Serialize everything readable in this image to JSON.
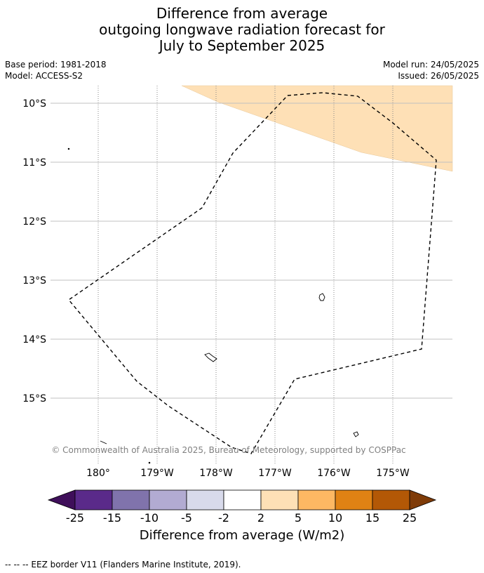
{
  "title": {
    "line1": "Difference from average",
    "line2": "outgoing longwave radiation forecast for",
    "line3": "July to September 2025"
  },
  "meta": {
    "base_period": "Base period: 1981-2018",
    "model": "Model: ACCESS-S2",
    "model_run": "Model run: 24/05/2025",
    "issued": "Issued: 26/05/2025"
  },
  "map": {
    "lat_labels": [
      "10°S",
      "11°S",
      "12°S",
      "13°S",
      "14°S",
      "15°S"
    ],
    "lon_labels": [
      "180°",
      "179°W",
      "178°W",
      "177°W",
      "176°W",
      "175°W"
    ],
    "attribution": "© Commonwealth of Australia 2025, Bureau of Meteorology, supported by COSPPac",
    "anomaly_fill_color": "#fee0b6",
    "eez_border_style": "dashed black"
  },
  "colorbar": {
    "title": "Difference from average (W/m2)",
    "ticks": [
      "-25",
      "-15",
      "-10",
      "-5",
      "-2",
      "2",
      "5",
      "10",
      "15",
      "25"
    ],
    "colors": [
      "#3f0f5a",
      "#5a2a8a",
      "#8073ac",
      "#b2abd2",
      "#d8daeb",
      "#ffffff",
      "#fee0b6",
      "#fdb863",
      "#e08214",
      "#b35806",
      "#7f3b08"
    ]
  },
  "footnote": "--  --  -- EEZ border V11 (Flanders Marine Institute, 2019)."
}
